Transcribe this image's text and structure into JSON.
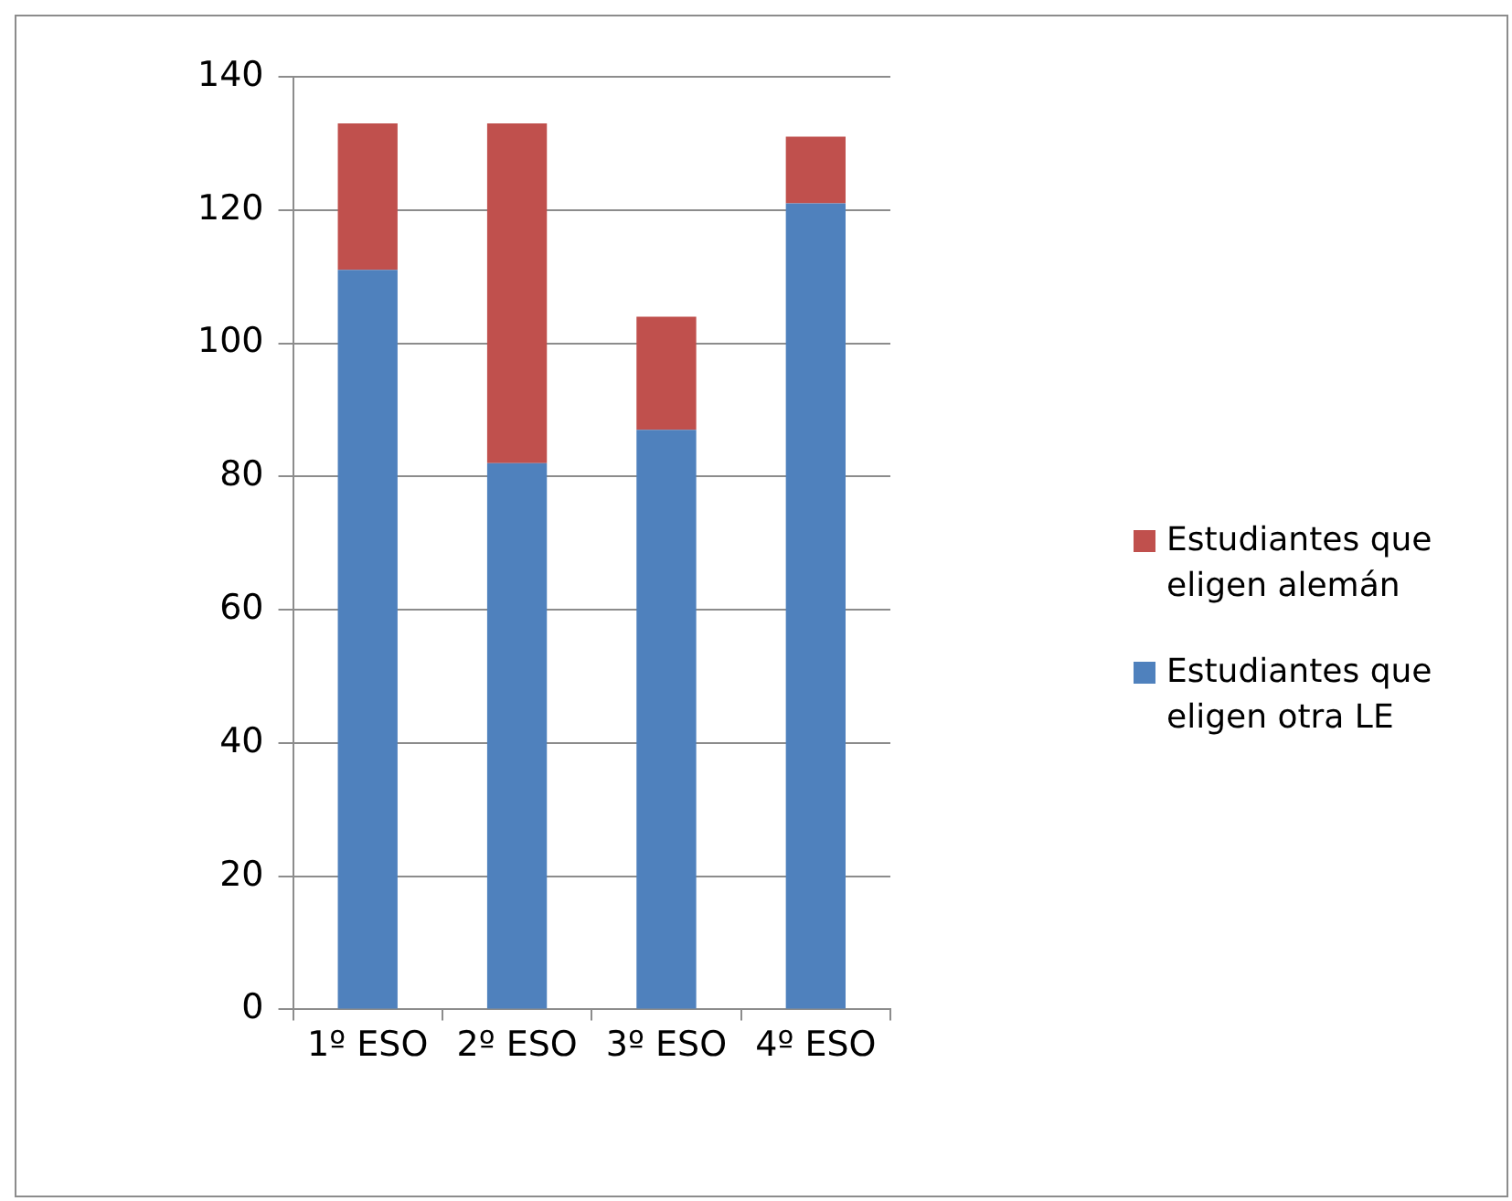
{
  "chart_data": {
    "type": "bar",
    "stacked": true,
    "categories": [
      "1º ESO",
      "2º ESO",
      "3º ESO",
      "4º ESO"
    ],
    "series": [
      {
        "name": "Estudiantes que eligen otra LE",
        "color": "#4f81bd",
        "values": [
          111,
          82,
          87,
          121
        ]
      },
      {
        "name": "Estudiantes que eligen alemán",
        "color": "#c0504d",
        "values": [
          22,
          51,
          17,
          10
        ]
      }
    ],
    "ylim": [
      0,
      140
    ],
    "yticks": [
      0,
      20,
      40,
      60,
      80,
      100,
      120,
      140
    ],
    "grid": "y",
    "legend": "right"
  }
}
